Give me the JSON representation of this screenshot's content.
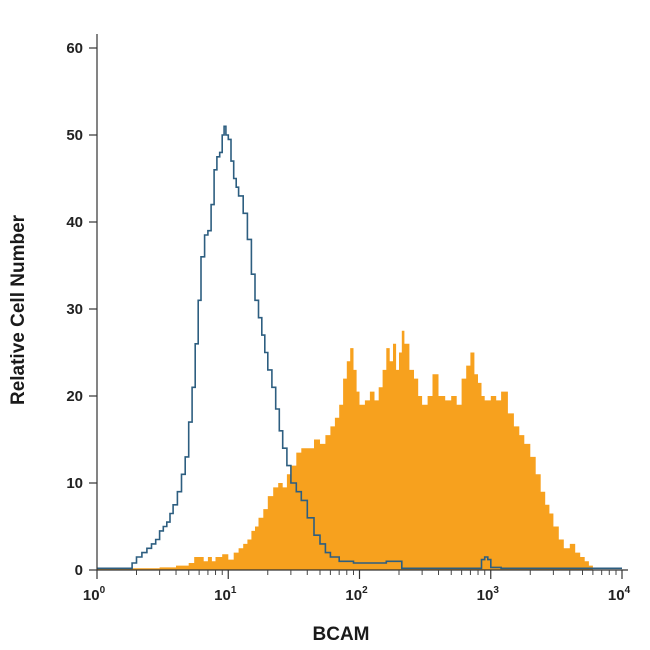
{
  "chart_data": {
    "type": "area",
    "xlabel": "BCAM",
    "ylabel": "Relative Cell Number",
    "x_scale": "log",
    "xlim": [
      1,
      10000
    ],
    "ylim": [
      0,
      60
    ],
    "x_ticks": [
      {
        "value": 1,
        "base": "10",
        "exp": "0"
      },
      {
        "value": 10,
        "base": "10",
        "exp": "1"
      },
      {
        "value": 100,
        "base": "10",
        "exp": "2"
      },
      {
        "value": 1000,
        "base": "10",
        "exp": "3"
      },
      {
        "value": 10000,
        "base": "10",
        "exp": "4"
      }
    ],
    "y_ticks": [
      "0",
      "10",
      "20",
      "30",
      "40",
      "50",
      "60"
    ],
    "grid": false,
    "legend": "none",
    "series": [
      {
        "style": "filled",
        "color": "#F7A11E",
        "points": [
          [
            1,
            0.2
          ],
          [
            2.0,
            0.2
          ],
          [
            3.0,
            0.3
          ],
          [
            4.0,
            0.5
          ],
          [
            5.0,
            0.8
          ],
          [
            5.5,
            1.5
          ],
          [
            6.0,
            1.5
          ],
          [
            6.5,
            1.0
          ],
          [
            7.0,
            1.5
          ],
          [
            7.5,
            1.0
          ],
          [
            8.0,
            1.5
          ],
          [
            9.0,
            1.8
          ],
          [
            10.0,
            1.2
          ],
          [
            11.0,
            2.0
          ],
          [
            12.0,
            2.5
          ],
          [
            13.0,
            3.0
          ],
          [
            14.0,
            3.5
          ],
          [
            15.0,
            4.5
          ],
          [
            16.0,
            5.0
          ],
          [
            17.0,
            6.0
          ],
          [
            18.5,
            7.0
          ],
          [
            20.0,
            8.5
          ],
          [
            22.0,
            9.5
          ],
          [
            24.0,
            10.0
          ],
          [
            26.0,
            9.5
          ],
          [
            28.0,
            11.0
          ],
          [
            30.0,
            12.0
          ],
          [
            33.0,
            13.5
          ],
          [
            36.0,
            14.0
          ],
          [
            40.0,
            14.0
          ],
          [
            45.0,
            15.0
          ],
          [
            50.0,
            14.5
          ],
          [
            55.0,
            15.5
          ],
          [
            60.0,
            16.5
          ],
          [
            65.0,
            17.5
          ],
          [
            70.0,
            19.0
          ],
          [
            75.0,
            22.0
          ],
          [
            80.0,
            24.0
          ],
          [
            85.0,
            25.5
          ],
          [
            90.0,
            23.0
          ],
          [
            95.0,
            20.5
          ],
          [
            100.0,
            19.0
          ],
          [
            110.0,
            19.5
          ],
          [
            120.0,
            20.5
          ],
          [
            130.0,
            19.5
          ],
          [
            140.0,
            21.0
          ],
          [
            150.0,
            23.0
          ],
          [
            160.0,
            25.5
          ],
          [
            170.0,
            24.0
          ],
          [
            180.0,
            26.0
          ],
          [
            190.0,
            23.0
          ],
          [
            200.0,
            25.0
          ],
          [
            210.0,
            27.5
          ],
          [
            220.0,
            26.0
          ],
          [
            240.0,
            23.0
          ],
          [
            260.0,
            22.0
          ],
          [
            280.0,
            20.0
          ],
          [
            300.0,
            19.0
          ],
          [
            330.0,
            20.0
          ],
          [
            360.0,
            22.5
          ],
          [
            400.0,
            20.0
          ],
          [
            450.0,
            19.5
          ],
          [
            500.0,
            20.0
          ],
          [
            550.0,
            19.0
          ],
          [
            600.0,
            22.0
          ],
          [
            650.0,
            23.5
          ],
          [
            700.0,
            25.0
          ],
          [
            750.0,
            22.5
          ],
          [
            800.0,
            21.5
          ],
          [
            850.0,
            20.0
          ],
          [
            900.0,
            19.5
          ],
          [
            1000.0,
            20.0
          ],
          [
            1100.0,
            19.5
          ],
          [
            1200.0,
            20.5
          ],
          [
            1350.0,
            18.0
          ],
          [
            1500.0,
            16.5
          ],
          [
            1650.0,
            15.5
          ],
          [
            1800.0,
            14.5
          ],
          [
            2000.0,
            13.0
          ],
          [
            2200.0,
            11.0
          ],
          [
            2400.0,
            9.0
          ],
          [
            2600.0,
            7.5
          ],
          [
            2800.0,
            6.5
          ],
          [
            3000.0,
            5.0
          ],
          [
            3300.0,
            3.5
          ],
          [
            3600.0,
            2.5
          ],
          [
            4000.0,
            3.0
          ],
          [
            4400.0,
            2.0
          ],
          [
            4800.0,
            1.5
          ],
          [
            5200.0,
            1.0
          ],
          [
            5600.0,
            0.5
          ],
          [
            6000.0,
            0.2
          ]
        ]
      },
      {
        "style": "outline",
        "color": "#2D5E80",
        "points": [
          [
            1,
            0.2
          ],
          [
            1.7,
            0.2
          ],
          [
            1.85,
            0.8
          ],
          [
            2.0,
            1.5
          ],
          [
            2.2,
            2.0
          ],
          [
            2.4,
            2.5
          ],
          [
            2.6,
            3.0
          ],
          [
            2.8,
            3.5
          ],
          [
            3.0,
            4.5
          ],
          [
            3.2,
            5.0
          ],
          [
            3.4,
            5.5
          ],
          [
            3.6,
            6.5
          ],
          [
            3.8,
            7.5
          ],
          [
            4.1,
            9.0
          ],
          [
            4.4,
            11.0
          ],
          [
            4.7,
            13.0
          ],
          [
            5.0,
            17.0
          ],
          [
            5.3,
            21.0
          ],
          [
            5.6,
            26.0
          ],
          [
            5.9,
            31.0
          ],
          [
            6.2,
            36.0
          ],
          [
            6.6,
            38.5
          ],
          [
            7.0,
            39.0
          ],
          [
            7.4,
            42.0
          ],
          [
            7.8,
            46.0
          ],
          [
            8.2,
            47.5
          ],
          [
            8.6,
            48.0
          ],
          [
            9.0,
            50.0
          ],
          [
            9.3,
            51.0
          ],
          [
            9.6,
            50.0
          ],
          [
            10.0,
            49.5
          ],
          [
            10.5,
            47.0
          ],
          [
            11.0,
            45.0
          ],
          [
            11.5,
            44.0
          ],
          [
            12.0,
            43.0
          ],
          [
            13.0,
            41.0
          ],
          [
            14.0,
            38.0
          ],
          [
            15.0,
            34.0
          ],
          [
            16.0,
            31.0
          ],
          [
            17.0,
            29.0
          ],
          [
            18.0,
            27.0
          ],
          [
            19.0,
            25.0
          ],
          [
            20.0,
            23.0
          ],
          [
            21.5,
            21.0
          ],
          [
            23.0,
            18.5
          ],
          [
            24.5,
            16.0
          ],
          [
            26.0,
            14.0
          ],
          [
            28.0,
            12.0
          ],
          [
            30.0,
            10.0
          ],
          [
            33.0,
            9.0
          ],
          [
            36.0,
            8.0
          ],
          [
            40.0,
            6.0
          ],
          [
            45.0,
            4.0
          ],
          [
            50.0,
            3.0
          ],
          [
            55.0,
            2.0
          ],
          [
            60.0,
            1.5
          ],
          [
            70.0,
            1.0
          ],
          [
            90.0,
            0.8
          ],
          [
            110.0,
            0.8
          ],
          [
            140.0,
            0.8
          ],
          [
            160.0,
            1.0
          ],
          [
            180.0,
            1.0
          ],
          [
            210.0,
            0.2
          ],
          [
            800.0,
            0.2
          ],
          [
            850.0,
            1.2
          ],
          [
            900.0,
            1.5
          ],
          [
            950.0,
            1.2
          ],
          [
            1000.0,
            0.3
          ],
          [
            1200.0,
            0.2
          ],
          [
            10000,
            0.2
          ]
        ]
      }
    ]
  }
}
